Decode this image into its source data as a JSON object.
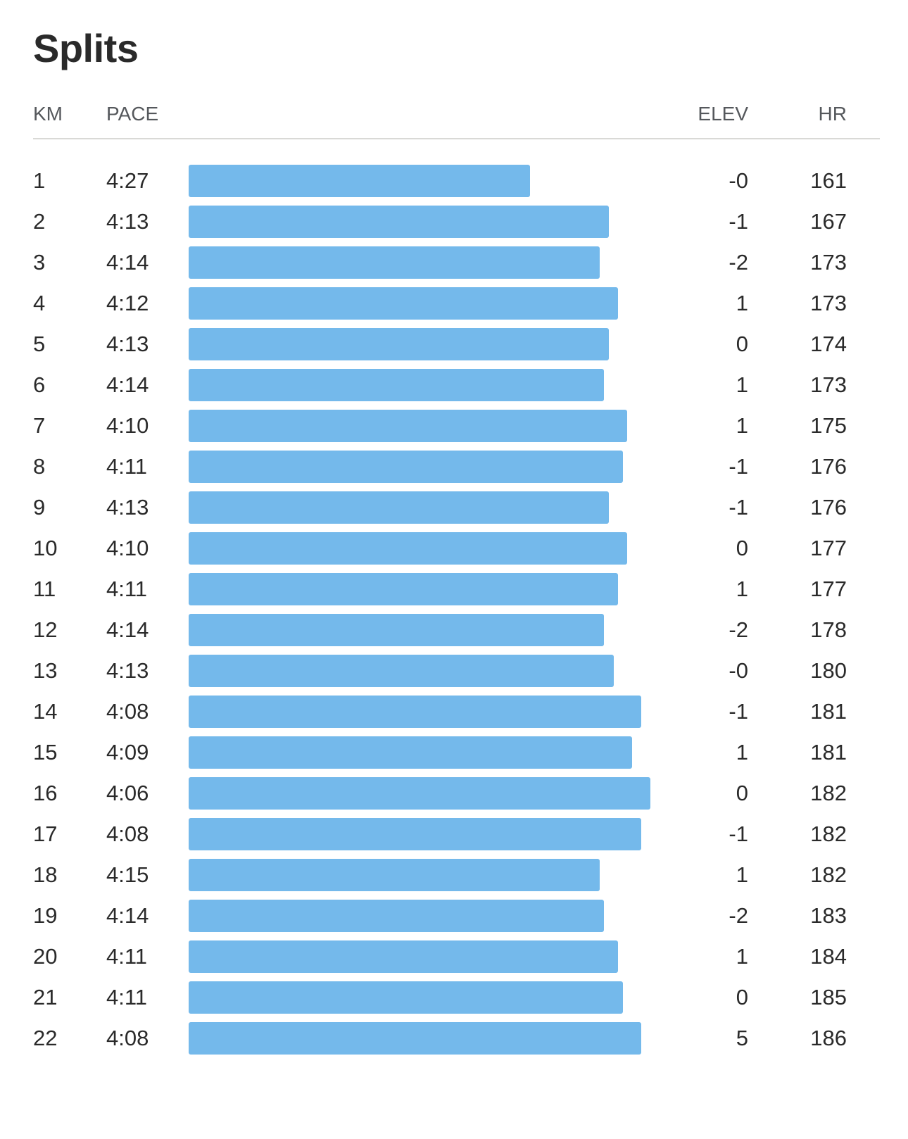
{
  "title": "Splits",
  "columns": {
    "km": "KM",
    "pace": "PACE",
    "elev": "ELEV",
    "hr": "HR"
  },
  "bar_color": "#74b9eb",
  "rows": [
    {
      "km": "1",
      "pace": "4:27",
      "elev": "-0",
      "hr": "161",
      "bar_pct": 72.5
    },
    {
      "km": "2",
      "pace": "4:13",
      "elev": "-1",
      "hr": "167",
      "bar_pct": 89.2
    },
    {
      "km": "3",
      "pace": "4:14",
      "elev": "-2",
      "hr": "173",
      "bar_pct": 87.3
    },
    {
      "km": "4",
      "pace": "4:12",
      "elev": "1",
      "hr": "173",
      "bar_pct": 91.2
    },
    {
      "km": "5",
      "pace": "4:13",
      "elev": "0",
      "hr": "174",
      "bar_pct": 89.2
    },
    {
      "km": "6",
      "pace": "4:14",
      "elev": "1",
      "hr": "173",
      "bar_pct": 88.2
    },
    {
      "km": "7",
      "pace": "4:10",
      "elev": "1",
      "hr": "175",
      "bar_pct": 93.1
    },
    {
      "km": "8",
      "pace": "4:11",
      "elev": "-1",
      "hr": "176",
      "bar_pct": 92.2
    },
    {
      "km": "9",
      "pace": "4:13",
      "elev": "-1",
      "hr": "176",
      "bar_pct": 89.2
    },
    {
      "km": "10",
      "pace": "4:10",
      "elev": "0",
      "hr": "177",
      "bar_pct": 93.1
    },
    {
      "km": "11",
      "pace": "4:11",
      "elev": "1",
      "hr": "177",
      "bar_pct": 91.2
    },
    {
      "km": "12",
      "pace": "4:14",
      "elev": "-2",
      "hr": "178",
      "bar_pct": 88.2
    },
    {
      "km": "13",
      "pace": "4:13",
      "elev": "-0",
      "hr": "180",
      "bar_pct": 90.3
    },
    {
      "km": "14",
      "pace": "4:08",
      "elev": "-1",
      "hr": "181",
      "bar_pct": 96.1
    },
    {
      "km": "15",
      "pace": "4:09",
      "elev": "1",
      "hr": "181",
      "bar_pct": 94.2
    },
    {
      "km": "16",
      "pace": "4:06",
      "elev": "0",
      "hr": "182",
      "bar_pct": 98.1
    },
    {
      "km": "17",
      "pace": "4:08",
      "elev": "-1",
      "hr": "182",
      "bar_pct": 96.1
    },
    {
      "km": "18",
      "pace": "4:15",
      "elev": "1",
      "hr": "182",
      "bar_pct": 87.3
    },
    {
      "km": "19",
      "pace": "4:14",
      "elev": "-2",
      "hr": "183",
      "bar_pct": 88.2
    },
    {
      "km": "20",
      "pace": "4:11",
      "elev": "1",
      "hr": "184",
      "bar_pct": 91.2
    },
    {
      "km": "21",
      "pace": "4:11",
      "elev": "0",
      "hr": "185",
      "bar_pct": 92.2
    },
    {
      "km": "22",
      "pace": "4:08",
      "elev": "5",
      "hr": "186",
      "bar_pct": 96.1
    }
  ],
  "chart_data": {
    "type": "bar",
    "orientation": "horizontal",
    "title": "Splits",
    "xlabel": "PACE",
    "ylabel": "KM",
    "categories": [
      "1",
      "2",
      "3",
      "4",
      "5",
      "6",
      "7",
      "8",
      "9",
      "10",
      "11",
      "12",
      "13",
      "14",
      "15",
      "16",
      "17",
      "18",
      "19",
      "20",
      "21",
      "22"
    ],
    "series": [
      {
        "name": "PACE (min:sec per km)",
        "values": [
          "4:27",
          "4:13",
          "4:14",
          "4:12",
          "4:13",
          "4:14",
          "4:10",
          "4:11",
          "4:13",
          "4:10",
          "4:11",
          "4:14",
          "4:13",
          "4:08",
          "4:09",
          "4:06",
          "4:08",
          "4:15",
          "4:14",
          "4:11",
          "4:11",
          "4:08"
        ]
      },
      {
        "name": "PACE (seconds per km)",
        "values": [
          267,
          253,
          254,
          252,
          253,
          254,
          250,
          251,
          253,
          250,
          251,
          254,
          253,
          248,
          249,
          246,
          248,
          255,
          254,
          251,
          251,
          248
        ]
      },
      {
        "name": "ELEV",
        "values": [
          0,
          -1,
          -2,
          1,
          0,
          1,
          1,
          -1,
          -1,
          0,
          1,
          -2,
          0,
          -1,
          1,
          0,
          -1,
          1,
          -2,
          1,
          0,
          5
        ]
      },
      {
        "name": "HR",
        "values": [
          161,
          167,
          173,
          173,
          174,
          173,
          175,
          176,
          176,
          177,
          177,
          178,
          180,
          181,
          181,
          182,
          182,
          182,
          183,
          184,
          185,
          186
        ]
      }
    ],
    "grid": false,
    "legend": "none",
    "bar_color": "#74b9eb"
  }
}
